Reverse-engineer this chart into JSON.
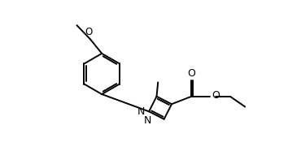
{
  "bg_color": "#ffffff",
  "line_color": "#000000",
  "lw": 1.4,
  "fs": 8.5,
  "xlim": [
    0.0,
    7.5
  ],
  "ylim": [
    0.5,
    6.5
  ]
}
